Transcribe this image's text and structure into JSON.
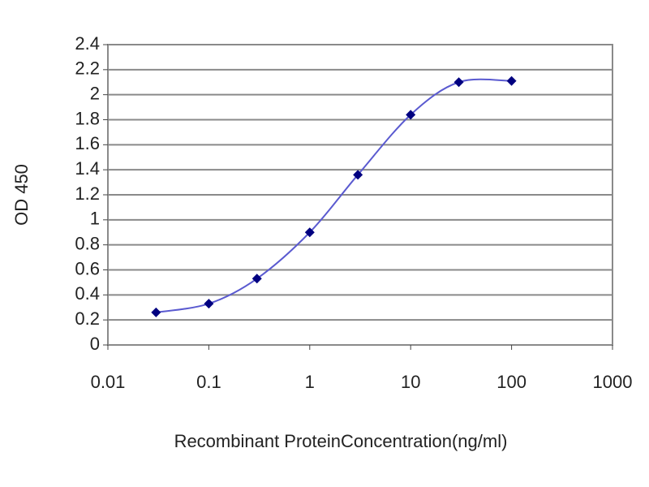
{
  "chart_data": {
    "type": "line",
    "x_label": "Recombinant ProteinConcentration(ng/ml)",
    "y_label": "OD 450",
    "x": [
      0.03,
      0.1,
      0.3,
      1,
      3,
      10,
      30,
      100
    ],
    "series": [
      {
        "color": "#000080",
        "line_color": "#5a5ad0",
        "values": [
          0.26,
          0.33,
          0.53,
          0.9,
          1.36,
          1.84,
          2.1,
          2.11
        ]
      }
    ],
    "xlim": [
      0.01,
      1000
    ],
    "xticks": [
      0.01,
      0.1,
      1,
      10,
      100,
      1000
    ],
    "xlog": true,
    "ylim": [
      0,
      2.4
    ],
    "yticks": [
      0,
      0.2,
      0.4,
      0.6,
      0.8,
      1,
      1.2,
      1.4,
      1.6,
      1.8,
      2,
      2.2,
      2.4
    ],
    "grid": true
  }
}
